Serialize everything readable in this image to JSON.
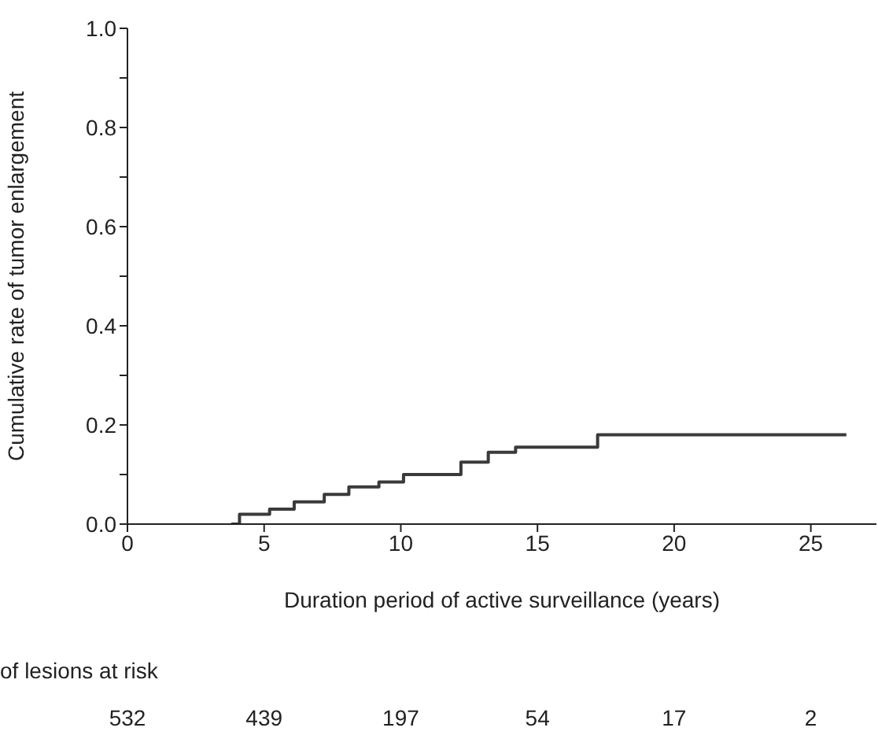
{
  "chart_data": {
    "type": "step",
    "xlabel": "Duration period of active surveillance (years)",
    "ylabel": "Cumulative rate of tumor enlargement",
    "x": [
      3.8,
      4.1,
      5.2,
      6.1,
      7.2,
      8.1,
      9.2,
      10.1,
      12.2,
      13.2,
      14.2,
      17.2,
      26.3
    ],
    "series": [
      {
        "color": "#3a3a3a",
        "values": [
          0,
          0.02,
          0.03,
          0.045,
          0.06,
          0.075,
          0.085,
          0.1,
          0.125,
          0.145,
          0.155,
          0.18,
          0.18
        ]
      }
    ],
    "xlim": [
      0,
      27.4
    ],
    "xticks": [
      0,
      5,
      10,
      15,
      20,
      25
    ],
    "ylim": [
      0,
      1
    ],
    "yticks": [
      {
        "value": 0,
        "label": "0.0"
      },
      {
        "value": 0.1,
        "label": null
      },
      {
        "value": 0.2,
        "label": "0.2"
      },
      {
        "value": 0.3,
        "label": null
      },
      {
        "value": 0.4,
        "label": "0.4"
      },
      {
        "value": 0.5,
        "label": null
      },
      {
        "value": 0.6,
        "label": "0.6"
      },
      {
        "value": 0.7,
        "label": null
      },
      {
        "value": 0.8,
        "label": "0.8"
      },
      {
        "value": 0.9,
        "label": null
      },
      {
        "value": 1,
        "label": "1.0"
      }
    ],
    "marker": "none",
    "line_style": "solid",
    "annotations": [
      "of lesions at risk",
      "532",
      "439",
      "197",
      "54",
      "17",
      "2"
    ]
  }
}
